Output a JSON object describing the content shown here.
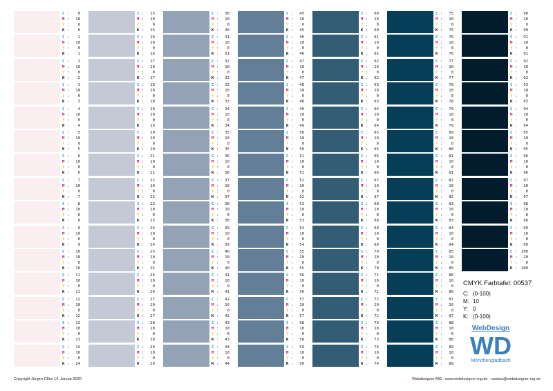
{
  "footer": {
    "copyright": "Copyright Jürgen Olfen  14. Januar 2020",
    "contact": "Webdesigner-MG - www.webdesigner-mg.de - contact@webdesigner-mg.de"
  },
  "info": {
    "title": "CMYK Farbtafel: 00537",
    "rows": [
      {
        "key": "C:",
        "value": "(0-100)"
      },
      {
        "key": "M:",
        "value": "10"
      },
      {
        "key": "Y:",
        "value": "0"
      },
      {
        "key": "K:",
        "value": "(0-100)"
      }
    ]
  },
  "logo": {
    "top_text": "WebDesign",
    "letters": "WD",
    "bottom_text": "Mönchengladbach",
    "color": "#3a7fbf"
  },
  "label_keys": {
    "c": "C",
    "m": "M",
    "y": "Y",
    "k": "K"
  },
  "swatch_colors": [
    "#fbeef1",
    "#c5c9d6",
    "#93a2b5",
    "#627f97",
    "#335d74",
    "#063e58",
    "#021c2e"
  ],
  "columns": [
    [
      {
        "c": 0,
        "m": 10,
        "y": 0,
        "k": 0
      },
      {
        "c": 1,
        "m": 10,
        "y": 0,
        "k": 1
      },
      {
        "c": 2,
        "m": 10,
        "y": 0,
        "k": 2
      },
      {
        "c": 3,
        "m": 10,
        "y": 0,
        "k": 3
      },
      {
        "c": 4,
        "m": 10,
        "y": 0,
        "k": 4
      },
      {
        "c": 5,
        "m": 10,
        "y": 0,
        "k": 5
      },
      {
        "c": 6,
        "m": 10,
        "y": 0,
        "k": 6
      },
      {
        "c": 7,
        "m": 10,
        "y": 0,
        "k": 7
      },
      {
        "c": 8,
        "m": 10,
        "y": 0,
        "k": 8
      },
      {
        "c": 9,
        "m": 10,
        "y": 0,
        "k": 9
      },
      {
        "c": 10,
        "m": 10,
        "y": 0,
        "k": 10
      },
      {
        "c": 11,
        "m": 10,
        "y": 0,
        "k": 11
      },
      {
        "c": 12,
        "m": 10,
        "y": 0,
        "k": 12
      },
      {
        "c": 13,
        "m": 10,
        "y": 0,
        "k": 13
      },
      {
        "c": 14,
        "m": 10,
        "y": 0,
        "k": 14
      }
    ],
    [
      {
        "c": 15,
        "m": 10,
        "y": 0,
        "k": 15
      },
      {
        "c": 16,
        "m": 10,
        "y": 0,
        "k": 16
      },
      {
        "c": 17,
        "m": 10,
        "y": 0,
        "k": 17
      },
      {
        "c": 18,
        "m": 10,
        "y": 0,
        "k": 18
      },
      {
        "c": 19,
        "m": 10,
        "y": 0,
        "k": 19
      },
      {
        "c": 20,
        "m": 10,
        "y": 0,
        "k": 20
      },
      {
        "c": 21,
        "m": 10,
        "y": 0,
        "k": 21
      },
      {
        "c": 22,
        "m": 10,
        "y": 0,
        "k": 22
      },
      {
        "c": 23,
        "m": 10,
        "y": 0,
        "k": 23
      },
      {
        "c": 24,
        "m": 10,
        "y": 0,
        "k": 24
      },
      {
        "c": 25,
        "m": 10,
        "y": 0,
        "k": 25
      },
      {
        "c": 26,
        "m": 10,
        "y": 0,
        "k": 26
      },
      {
        "c": 27,
        "m": 10,
        "y": 0,
        "k": 27
      },
      {
        "c": 28,
        "m": 10,
        "y": 0,
        "k": 28
      },
      {
        "c": 29,
        "m": 10,
        "y": 0,
        "k": 29
      }
    ],
    [
      {
        "c": 30,
        "m": 10,
        "y": 0,
        "k": 30
      },
      {
        "c": 31,
        "m": 10,
        "y": 0,
        "k": 31
      },
      {
        "c": 32,
        "m": 10,
        "y": 0,
        "k": 32
      },
      {
        "c": 33,
        "m": 10,
        "y": 0,
        "k": 33
      },
      {
        "c": 34,
        "m": 10,
        "y": 0,
        "k": 34
      },
      {
        "c": 35,
        "m": 10,
        "y": 0,
        "k": 35
      },
      {
        "c": 36,
        "m": 10,
        "y": 0,
        "k": 36
      },
      {
        "c": 37,
        "m": 10,
        "y": 0,
        "k": 37
      },
      {
        "c": 38,
        "m": 10,
        "y": 0,
        "k": 38
      },
      {
        "c": 39,
        "m": 10,
        "y": 0,
        "k": 39
      },
      {
        "c": 40,
        "m": 10,
        "y": 0,
        "k": 40
      },
      {
        "c": 41,
        "m": 10,
        "y": 0,
        "k": 41
      },
      {
        "c": 42,
        "m": 10,
        "y": 0,
        "k": 42
      },
      {
        "c": 43,
        "m": 10,
        "y": 0,
        "k": 43
      },
      {
        "c": 44,
        "m": 10,
        "y": 0,
        "k": 44
      }
    ],
    [
      {
        "c": 45,
        "m": 10,
        "y": 0,
        "k": 45
      },
      {
        "c": 46,
        "m": 10,
        "y": 0,
        "k": 46
      },
      {
        "c": 47,
        "m": 10,
        "y": 0,
        "k": 47
      },
      {
        "c": 48,
        "m": 10,
        "y": 0,
        "k": 48
      },
      {
        "c": 49,
        "m": 10,
        "y": 0,
        "k": 49
      },
      {
        "c": 50,
        "m": 10,
        "y": 0,
        "k": 50
      },
      {
        "c": 51,
        "m": 10,
        "y": 0,
        "k": 51
      },
      {
        "c": 52,
        "m": 10,
        "y": 0,
        "k": 52
      },
      {
        "c": 53,
        "m": 10,
        "y": 0,
        "k": 53
      },
      {
        "c": 54,
        "m": 10,
        "y": 0,
        "k": 54
      },
      {
        "c": 55,
        "m": 10,
        "y": 0,
        "k": 55
      },
      {
        "c": 56,
        "m": 10,
        "y": 0,
        "k": 56
      },
      {
        "c": 57,
        "m": 10,
        "y": 0,
        "k": 57
      },
      {
        "c": 58,
        "m": 10,
        "y": 0,
        "k": 58
      },
      {
        "c": 59,
        "m": 10,
        "y": 0,
        "k": 59
      }
    ],
    [
      {
        "c": 60,
        "m": 10,
        "y": 0,
        "k": 60
      },
      {
        "c": 61,
        "m": 10,
        "y": 0,
        "k": 61
      },
      {
        "c": 62,
        "m": 10,
        "y": 0,
        "k": 62
      },
      {
        "c": 63,
        "m": 10,
        "y": 0,
        "k": 63
      },
      {
        "c": 64,
        "m": 10,
        "y": 0,
        "k": 64
      },
      {
        "c": 65,
        "m": 10,
        "y": 0,
        "k": 65
      },
      {
        "c": 66,
        "m": 10,
        "y": 0,
        "k": 66
      },
      {
        "c": 67,
        "m": 10,
        "y": 0,
        "k": 67
      },
      {
        "c": 68,
        "m": 10,
        "y": 0,
        "k": 68
      },
      {
        "c": 69,
        "m": 10,
        "y": 0,
        "k": 69
      },
      {
        "c": 70,
        "m": 10,
        "y": 0,
        "k": 70
      },
      {
        "c": 71,
        "m": 10,
        "y": 0,
        "k": 71
      },
      {
        "c": 72,
        "m": 10,
        "y": 0,
        "k": 72
      },
      {
        "c": 73,
        "m": 10,
        "y": 0,
        "k": 73
      },
      {
        "c": 74,
        "m": 10,
        "y": 0,
        "k": 74
      }
    ],
    [
      {
        "c": 75,
        "m": 10,
        "y": 0,
        "k": 75
      },
      {
        "c": 76,
        "m": 10,
        "y": 0,
        "k": 76
      },
      {
        "c": 77,
        "m": 10,
        "y": 0,
        "k": 77
      },
      {
        "c": 78,
        "m": 10,
        "y": 0,
        "k": 78
      },
      {
        "c": 79,
        "m": 10,
        "y": 0,
        "k": 79
      },
      {
        "c": 80,
        "m": 10,
        "y": 0,
        "k": 80
      },
      {
        "c": 81,
        "m": 10,
        "y": 0,
        "k": 81
      },
      {
        "c": 82,
        "m": 10,
        "y": 0,
        "k": 82
      },
      {
        "c": 83,
        "m": 10,
        "y": 0,
        "k": 83
      },
      {
        "c": 84,
        "m": 10,
        "y": 0,
        "k": 84
      },
      {
        "c": 85,
        "m": 10,
        "y": 0,
        "k": 85
      },
      {
        "c": 86,
        "m": 10,
        "y": 0,
        "k": 86
      },
      {
        "c": 87,
        "m": 10,
        "y": 0,
        "k": 87
      },
      {
        "c": 88,
        "m": 10,
        "y": 0,
        "k": 88
      },
      {
        "c": 89,
        "m": 10,
        "y": 0,
        "k": 89
      }
    ],
    [
      {
        "c": 90,
        "m": 10,
        "y": 0,
        "k": 90
      },
      {
        "c": 91,
        "m": 10,
        "y": 0,
        "k": 91
      },
      {
        "c": 92,
        "m": 10,
        "y": 0,
        "k": 92
      },
      {
        "c": 93,
        "m": 10,
        "y": 0,
        "k": 93
      },
      {
        "c": 94,
        "m": 10,
        "y": 0,
        "k": 94
      },
      {
        "c": 95,
        "m": 10,
        "y": 0,
        "k": 95
      },
      {
        "c": 96,
        "m": 10,
        "y": 0,
        "k": 96
      },
      {
        "c": 97,
        "m": 10,
        "y": 0,
        "k": 97
      },
      {
        "c": 98,
        "m": 10,
        "y": 0,
        "k": 98
      },
      {
        "c": 99,
        "m": 10,
        "y": 0,
        "k": 99
      },
      {
        "c": 100,
        "m": 10,
        "y": 0,
        "k": 100
      }
    ]
  ]
}
